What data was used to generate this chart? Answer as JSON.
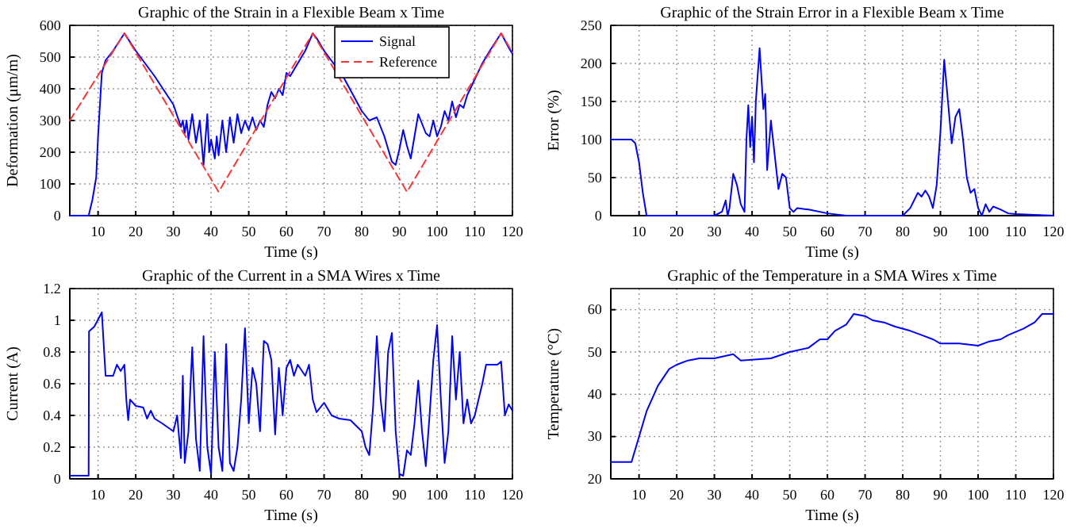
{
  "chart_data": [
    {
      "type": "line",
      "title": "Graphic of the Strain in a Flexible Beam x Time",
      "xlabel": "Time (s)",
      "ylabel": "Deformation (μm/m)",
      "xlim": [
        2.5,
        120
      ],
      "xticks": [
        10,
        20,
        30,
        40,
        50,
        60,
        70,
        80,
        90,
        100,
        110,
        120
      ],
      "ylim": [
        0,
        600
      ],
      "yticks": [
        0,
        100,
        200,
        300,
        400,
        500,
        600
      ],
      "grid": true,
      "legend": "top right",
      "series": [
        {
          "name": "Signal",
          "color": "#0000ff",
          "line_style": "solid",
          "x": [
            2.5,
            7.5,
            8.5,
            9.5,
            10,
            11,
            12,
            14,
            17,
            20,
            25,
            30,
            32,
            32.5,
            33,
            33.5,
            34,
            35,
            36,
            37,
            38,
            39,
            39.5,
            40,
            41,
            41.5,
            42,
            43,
            44,
            45,
            46,
            47,
            48,
            49,
            50,
            51,
            52,
            53,
            54,
            55,
            56,
            57,
            58,
            59,
            60,
            61,
            62,
            63,
            65,
            67,
            68,
            70,
            75,
            80,
            82,
            84,
            86,
            88,
            89,
            90,
            91,
            92,
            93,
            94,
            95,
            96,
            97,
            98,
            99,
            100,
            101,
            102,
            103,
            104,
            105,
            106,
            107,
            108,
            110,
            112,
            114,
            117,
            119,
            120
          ],
          "values": [
            0,
            0,
            50,
            120,
            250,
            450,
            490,
            520,
            575,
            520,
            440,
            350,
            280,
            300,
            260,
            300,
            240,
            320,
            230,
            300,
            160,
            320,
            200,
            240,
            180,
            250,
            190,
            300,
            200,
            310,
            230,
            320,
            260,
            300,
            270,
            310,
            270,
            300,
            280,
            350,
            390,
            370,
            400,
            380,
            450,
            440,
            460,
            480,
            520,
            575,
            560,
            520,
            440,
            330,
            300,
            310,
            250,
            170,
            160,
            210,
            270,
            220,
            180,
            250,
            320,
            290,
            260,
            250,
            300,
            250,
            280,
            330,
            300,
            360,
            310,
            350,
            340,
            380,
            430,
            480,
            520,
            575,
            530,
            510
          ]
        },
        {
          "name": "Reference",
          "color": "#ff3333",
          "line_style": "dashed",
          "x": [
            2.5,
            17,
            42,
            67,
            92,
            117,
            120
          ],
          "values": [
            300,
            575,
            75,
            575,
            75,
            575,
            515
          ]
        }
      ]
    },
    {
      "type": "line",
      "title": "Graphic of the Strain Error in a Flexible Beam x Time",
      "xlabel": "Time (s)",
      "ylabel": "Error (%)",
      "xlim": [
        2.5,
        120
      ],
      "xticks": [
        10,
        20,
        30,
        40,
        50,
        60,
        70,
        80,
        90,
        100,
        110,
        120
      ],
      "ylim": [
        0,
        250
      ],
      "yticks": [
        0,
        50,
        100,
        150,
        200,
        250
      ],
      "grid": true,
      "series": [
        {
          "color": "#0000ff",
          "line_style": "solid",
          "x": [
            2.5,
            8,
            9,
            10,
            11,
            12,
            30,
            32,
            33,
            33.5,
            34,
            35,
            36,
            37,
            38,
            38.5,
            39,
            39.5,
            40,
            40.5,
            41,
            42,
            43,
            43.5,
            44,
            45,
            46,
            47,
            48,
            49,
            50,
            51,
            52,
            55,
            60,
            65,
            80,
            82,
            84,
            85,
            86,
            87,
            88,
            89,
            90,
            91,
            92,
            93,
            94,
            95,
            96,
            97,
            98,
            99,
            100,
            101,
            102,
            103,
            104,
            106,
            108,
            110,
            120
          ],
          "values": [
            100,
            100,
            95,
            70,
            30,
            0,
            0,
            5,
            20,
            0,
            10,
            55,
            40,
            15,
            5,
            100,
            145,
            90,
            130,
            70,
            150,
            220,
            140,
            160,
            60,
            125,
            80,
            35,
            55,
            50,
            10,
            5,
            10,
            8,
            3,
            0,
            0,
            10,
            30,
            25,
            33,
            25,
            10,
            40,
            110,
            205,
            150,
            95,
            130,
            140,
            100,
            50,
            30,
            35,
            10,
            0,
            15,
            5,
            12,
            8,
            3,
            2,
            0
          ]
        }
      ]
    },
    {
      "type": "line",
      "title": "Graphic of the Current in a SMA Wires x Time",
      "xlabel": "Time (s)",
      "ylabel": "Current (A)",
      "xlim": [
        2.5,
        120
      ],
      "xticks": [
        10,
        20,
        30,
        40,
        50,
        60,
        70,
        80,
        90,
        100,
        110,
        120
      ],
      "ylim": [
        0,
        1.2
      ],
      "yticks": [
        0,
        0.2,
        0.4,
        0.6,
        0.8,
        1,
        1.2
      ],
      "grid": true,
      "series": [
        {
          "color": "#0000ff",
          "line_style": "solid",
          "x": [
            2.5,
            7.5,
            7.6,
            9,
            11,
            11.5,
            12,
            14,
            15,
            16,
            17,
            17.5,
            18,
            18.5,
            20,
            22,
            23,
            24,
            25,
            27,
            30,
            31,
            32,
            32.5,
            33,
            34,
            35,
            36,
            37,
            38,
            39,
            40,
            41,
            42,
            43,
            44,
            45,
            46,
            47,
            48,
            49,
            50,
            51,
            52,
            53,
            54,
            55,
            56,
            57,
            58,
            59,
            60,
            61,
            62,
            63,
            65,
            66,
            67,
            68,
            70,
            72,
            74,
            77,
            80,
            81,
            82,
            83,
            84,
            85,
            86,
            87,
            88,
            89,
            90,
            91,
            92,
            93,
            94,
            95,
            96,
            97,
            98,
            99,
            100,
            101,
            102,
            103,
            104,
            105,
            106,
            107,
            108,
            109,
            110,
            112,
            113,
            116,
            117,
            118,
            119,
            120
          ],
          "values": [
            0.02,
            0.02,
            0.93,
            0.96,
            1.05,
            0.85,
            0.65,
            0.65,
            0.72,
            0.68,
            0.72,
            0.5,
            0.37,
            0.5,
            0.46,
            0.45,
            0.38,
            0.43,
            0.38,
            0.35,
            0.3,
            0.4,
            0.13,
            0.65,
            0.1,
            0.3,
            0.83,
            0.25,
            0.05,
            0.9,
            0.2,
            0.03,
            0.8,
            0.2,
            0.05,
            0.85,
            0.1,
            0.05,
            0.2,
            0.5,
            0.95,
            0.35,
            0.7,
            0.6,
            0.3,
            0.87,
            0.85,
            0.75,
            0.28,
            0.7,
            0.4,
            0.7,
            0.75,
            0.65,
            0.72,
            0.65,
            0.72,
            0.5,
            0.42,
            0.48,
            0.4,
            0.38,
            0.37,
            0.3,
            0.2,
            0.15,
            0.45,
            0.9,
            0.5,
            0.3,
            0.8,
            0.92,
            0.3,
            0.03,
            0.02,
            0.18,
            0.15,
            0.35,
            0.62,
            0.3,
            0.08,
            0.4,
            0.75,
            0.97,
            0.5,
            0.1,
            0.3,
            0.9,
            0.5,
            0.8,
            0.35,
            0.5,
            0.35,
            0.4,
            0.6,
            0.72,
            0.72,
            0.74,
            0.4,
            0.47,
            0.43
          ]
        }
      ]
    },
    {
      "type": "line",
      "title": "Graphic of the Temperature in a SMA Wires x Time",
      "xlabel": "Time (s)",
      "ylabel": "Temperature (°C)",
      "xlim": [
        2.5,
        120
      ],
      "xticks": [
        10,
        20,
        30,
        40,
        50,
        60,
        70,
        80,
        90,
        100,
        110,
        120
      ],
      "ylim": [
        20,
        65
      ],
      "yticks": [
        20,
        30,
        40,
        50,
        60
      ],
      "grid": true,
      "series": [
        {
          "color": "#0000ff",
          "line_style": "solid",
          "x": [
            2.5,
            8,
            10,
            12,
            15,
            18,
            20,
            23,
            26,
            30,
            35,
            37,
            45,
            50,
            55,
            58,
            60,
            62,
            65,
            67,
            70,
            72,
            75,
            78,
            82,
            85,
            88,
            90,
            95,
            100,
            103,
            106,
            108,
            112,
            115,
            117,
            120
          ],
          "values": [
            24,
            24,
            30,
            36,
            42,
            46,
            47,
            48,
            48.5,
            48.5,
            49.5,
            48,
            48.5,
            50,
            51,
            53,
            53,
            55,
            56.5,
            59,
            58.5,
            57.5,
            57,
            56,
            55,
            54,
            53,
            52,
            52,
            51.5,
            52.5,
            53,
            54,
            55.5,
            57,
            59,
            59
          ]
        }
      ]
    }
  ]
}
